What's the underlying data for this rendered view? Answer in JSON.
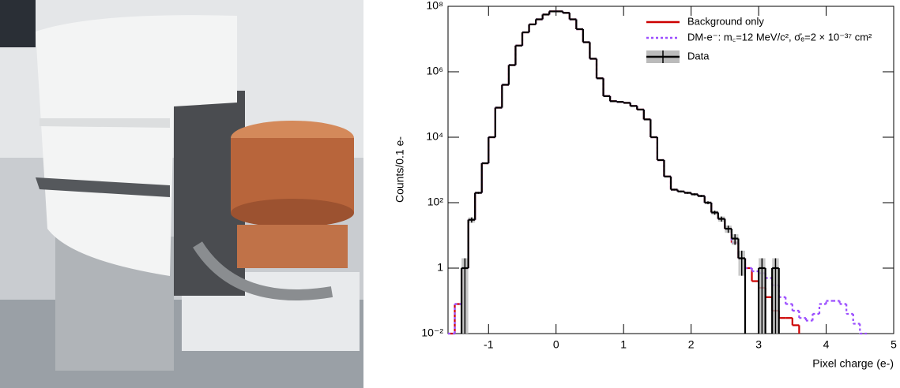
{
  "chart_data": {
    "type": "histogram",
    "ylabel": "Counts/0.1 e-",
    "xlabel": "Pixel charge (e-)",
    "log_y": true,
    "xlim": [
      -1.6,
      5
    ],
    "xticks": [
      -1,
      0,
      1,
      2,
      3,
      4,
      5
    ],
    "ylim": [
      0.01,
      100000000
    ],
    "yticks": [
      {
        "value": 0.01,
        "label": "10⁻²"
      },
      1,
      {
        "value": 100,
        "label": "10²"
      },
      {
        "value": 10000,
        "label": "10⁴"
      },
      {
        "value": 1000000,
        "label": "10⁶"
      },
      {
        "value": 100000000,
        "label": "10⁸"
      }
    ],
    "legend": "top-right",
    "bins": [
      -1.6,
      -1.5,
      -1.4,
      -1.3,
      -1.2,
      -1.1,
      -1.0,
      -0.9,
      -0.8,
      -0.7,
      -0.6,
      -0.5,
      -0.4,
      -0.3,
      -0.2,
      -0.1,
      0.0,
      0.1,
      0.2,
      0.3,
      0.4,
      0.5,
      0.6,
      0.7,
      0.8,
      0.9,
      1.0,
      1.1,
      1.2,
      1.3,
      1.4,
      1.5,
      1.6,
      1.7,
      1.8,
      1.9,
      2.0,
      2.1,
      2.2,
      2.3,
      2.4,
      2.5,
      2.6,
      2.7,
      2.8,
      2.9,
      3.0,
      3.1,
      3.2,
      3.3,
      3.4,
      3.5,
      3.6,
      3.7,
      3.8,
      3.9,
      4.0,
      4.1,
      4.2,
      4.3,
      4.4,
      4.5,
      4.6,
      4.7,
      4.8,
      4.9,
      5.0
    ],
    "series": [
      {
        "name": "Background only",
        "color": "#cc0000",
        "style": "solid",
        "values": [
          0.01,
          0.08,
          1,
          30,
          200,
          1600,
          10000,
          80000,
          400000,
          1600000,
          6300000,
          16000000,
          28000000,
          40000000,
          56000000,
          70000000,
          70000000,
          63000000,
          40000000,
          20000000,
          8000000,
          2500000,
          630000,
          180000,
          126000,
          120000,
          112000,
          90000,
          70000,
          35000,
          10000,
          2000,
          630,
          250,
          220,
          200,
          180,
          160,
          100,
          50,
          32,
          16,
          6,
          2,
          1,
          0.4,
          0.25,
          0.13,
          0.05,
          0.03,
          0.03,
          0.018,
          null,
          null,
          null,
          null,
          null,
          null,
          null,
          null,
          null,
          null,
          null,
          null,
          null,
          null
        ]
      },
      {
        "name": "DM-e⁻: m꜀=12 MeV/c², σ̄ₑ=2 × 10⁻³⁷ cm²",
        "color": "#9b4dff",
        "style": "dotted",
        "values": [
          0.01,
          0.08,
          1,
          30,
          200,
          1600,
          10000,
          80000,
          400000,
          1600000,
          6300000,
          16000000,
          28000000,
          40000000,
          56000000,
          70000000,
          70000000,
          63000000,
          40000000,
          20000000,
          8000000,
          2500000,
          630000,
          180000,
          126000,
          120000,
          112000,
          90000,
          70000,
          35000,
          10000,
          2000,
          630,
          250,
          220,
          200,
          180,
          160,
          100,
          50,
          32,
          16,
          6,
          2,
          1,
          0.8,
          0.7,
          0.5,
          0.3,
          0.13,
          0.08,
          0.05,
          0.03,
          0.025,
          0.04,
          0.08,
          0.1,
          0.1,
          0.08,
          0.04,
          0.02,
          0.01,
          null,
          null,
          null,
          null
        ]
      },
      {
        "name": "Data",
        "color": "#000000",
        "style": "data",
        "values": [
          null,
          null,
          1,
          30,
          200,
          1600,
          10000,
          80000,
          400000,
          1600000,
          6300000,
          16000000,
          28000000,
          40000000,
          56000000,
          70000000,
          70000000,
          63000000,
          40000000,
          20000000,
          8000000,
          2500000,
          630000,
          180000,
          126000,
          120000,
          112000,
          90000,
          70000,
          35000,
          10000,
          2000,
          630,
          250,
          220,
          200,
          180,
          160,
          100,
          50,
          32,
          16,
          8,
          2,
          null,
          null,
          1,
          null,
          1,
          null,
          null,
          null,
          null,
          null,
          null,
          null,
          null,
          null,
          null,
          null,
          null,
          null,
          null,
          null,
          null,
          null
        ]
      }
    ]
  }
}
